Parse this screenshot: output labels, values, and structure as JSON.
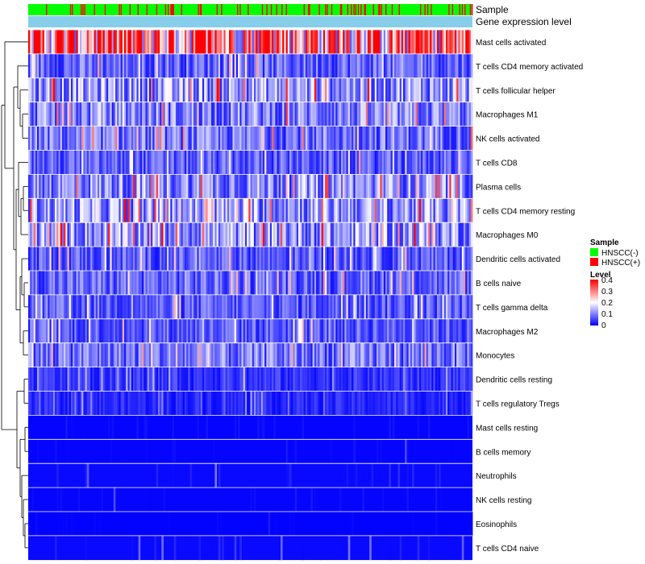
{
  "chart_data": {
    "type": "heatmap",
    "title": "",
    "annotation_tracks": [
      {
        "name": "Sample",
        "label": "Sample"
      },
      {
        "name": "Gene expression level",
        "label": "Gene expression level",
        "color": "#87ceeb"
      }
    ],
    "rows": [
      {
        "label": "Mast cells activated",
        "mean": 0.3
      },
      {
        "label": "T cells CD4 memory activated",
        "mean": 0.08
      },
      {
        "label": "T cells follicular helper",
        "mean": 0.12
      },
      {
        "label": "Macrophages M1",
        "mean": 0.1
      },
      {
        "label": "NK cells activated",
        "mean": 0.09
      },
      {
        "label": "T cells CD8",
        "mean": 0.07
      },
      {
        "label": "Plasma cells",
        "mean": 0.11
      },
      {
        "label": "T cells CD4 memory resting",
        "mean": 0.12
      },
      {
        "label": "Macrophages M0",
        "mean": 0.12
      },
      {
        "label": "Dendritic cells activated",
        "mean": 0.07
      },
      {
        "label": "B cells naive",
        "mean": 0.08
      },
      {
        "label": "T cells gamma delta",
        "mean": 0.07
      },
      {
        "label": "Macrophages M2",
        "mean": 0.07
      },
      {
        "label": "Monocytes",
        "mean": 0.09
      },
      {
        "label": "Dendritic cells resting",
        "mean": 0.04
      },
      {
        "label": "T cells regulatory  Tregs",
        "mean": 0.03
      },
      {
        "label": "Mast cells resting",
        "mean": 0.01
      },
      {
        "label": "B cells memory",
        "mean": 0.01
      },
      {
        "label": "Neutrophils",
        "mean": 0.02
      },
      {
        "label": "NK cells resting",
        "mean": 0.01
      },
      {
        "label": "Eosinophils",
        "mean": 0.005
      },
      {
        "label": "T cells CD4 naive",
        "mean": 0.02
      }
    ],
    "n_samples": 500,
    "legend": {
      "sample": {
        "title": "Sample",
        "items": [
          {
            "label": "HNSCC(-)",
            "color": "#00ff00"
          },
          {
            "label": "HNSCC(+)",
            "color": "#ff0000"
          }
        ]
      },
      "level": {
        "title": "Level",
        "ticks": [
          "0.4",
          "0.3",
          "0.2",
          "0.1",
          "0"
        ],
        "range": [
          0,
          0.4
        ],
        "low_color": "#0000ff",
        "mid_color": "#ffffff",
        "high_color": "#ff0000"
      }
    }
  }
}
